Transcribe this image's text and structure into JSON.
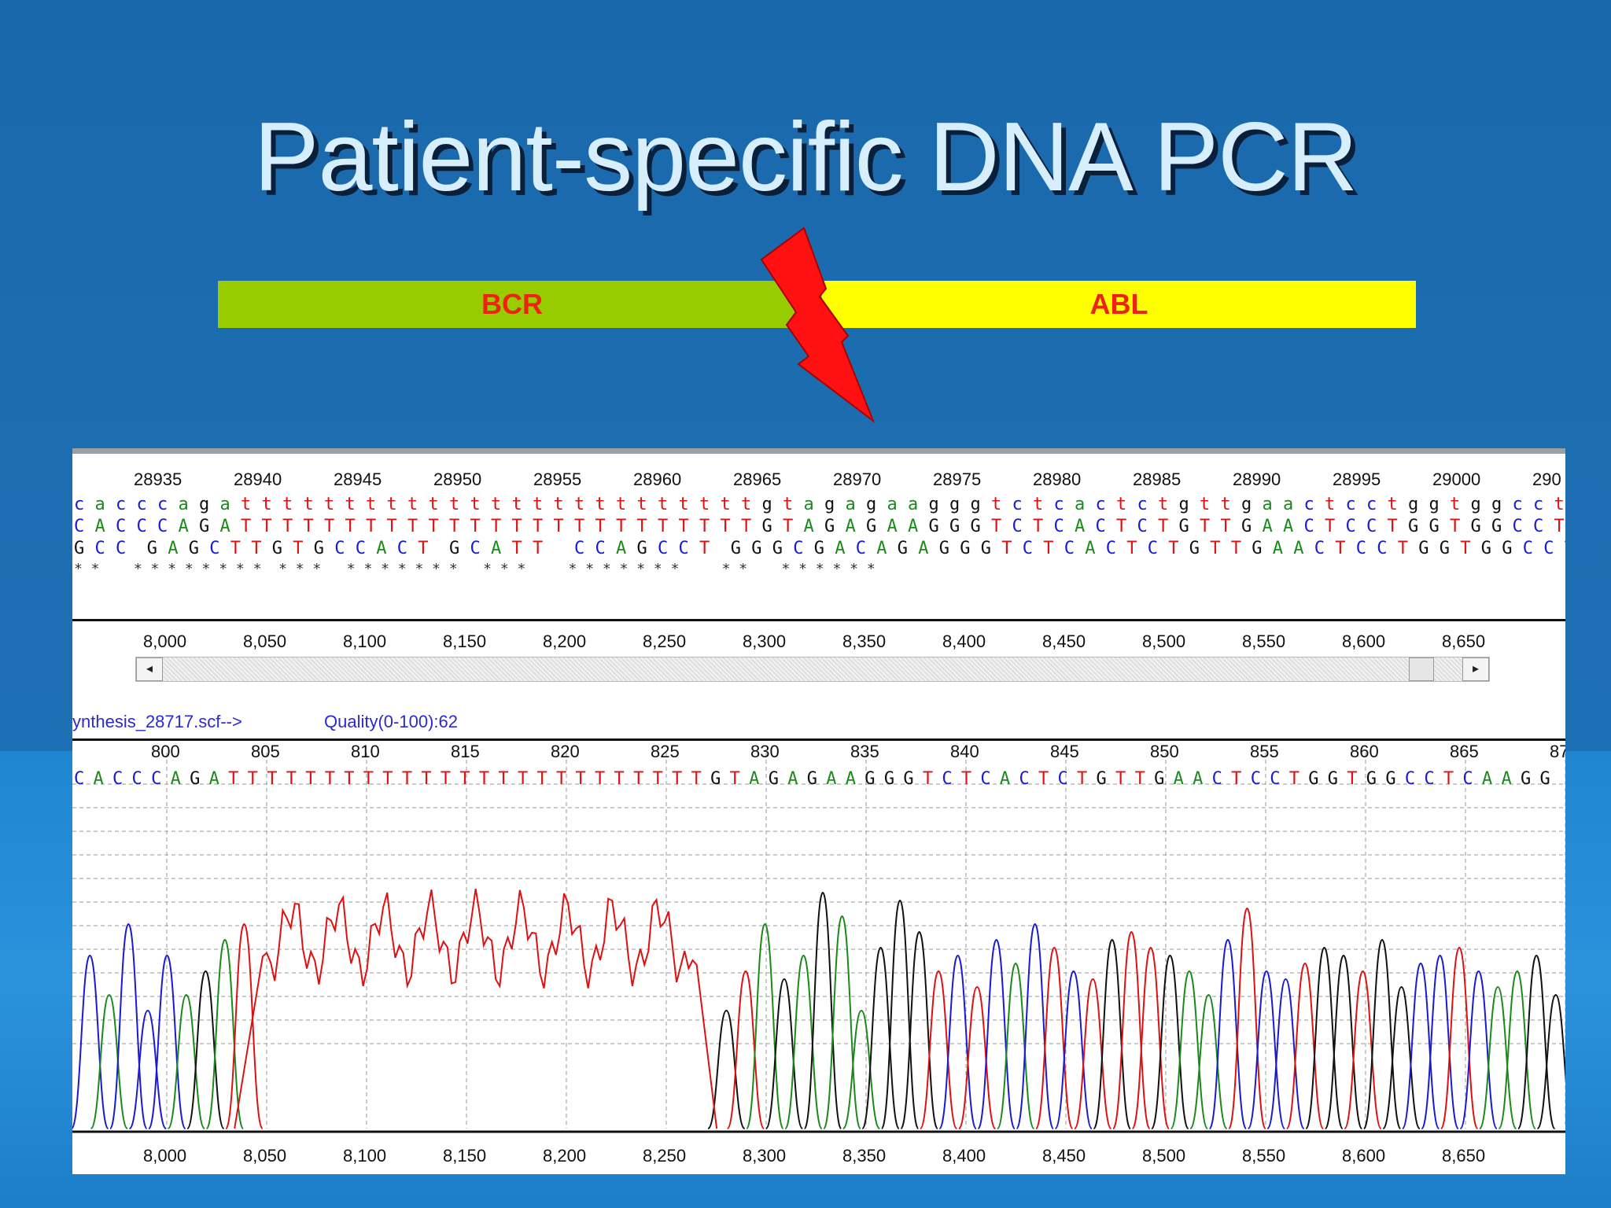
{
  "slide": {
    "title": "Patient-specific DNA PCR"
  },
  "fusion_bar": {
    "left_label": "BCR",
    "right_label": "ABL",
    "left_color": "#99cc00",
    "right_color": "#ffff00",
    "label_color": "#ee2211",
    "breakpoint_icon": "lightning-bolt-icon"
  },
  "alignment": {
    "positions": [
      "28935",
      "28940",
      "28945",
      "28950",
      "28955",
      "28960",
      "28965",
      "28970",
      "28975",
      "28980",
      "28985",
      "28990",
      "28995",
      "29000",
      "290"
    ],
    "reference_sequence": "c a c c c a g a t t t t t t t t t t t t t t t t t t t t t t t t t g t a g a g a a g g g t c t c a c t c t g t t g a a c t c c t g g t g g c c t c a a g g",
    "read_sequence": "C A C C C A G A T T T T T T T T T T T T T T T T T T T T T T T T T G T A G A G A A G G G T C T C A C T C T G T T G A A C T C C T G G T G G C C T C A A G G",
    "consensus_sequence": "G C C  G A G C T T G T G C C A C T  G C A T T   C C A G C C T  G G G C G A C A G A G G G T C T C A C T C T G T T G A A C T C C T G G T G G C C T C A A G G",
    "match_marks": "* *    * * * * * * * *  * * *   * * * * * * *   * * *     * * * * * * *     * *    * * * * * *",
    "axis_ticks": [
      "8,000",
      "8,050",
      "8,100",
      "8,150",
      "8,200",
      "8,250",
      "8,300",
      "8,350",
      "8,400",
      "8,450",
      "8,500",
      "8,550",
      "8,600",
      "8,650"
    ]
  },
  "scrollbar": {
    "left_arrow": "◂",
    "right_arrow": "▸"
  },
  "chromatogram": {
    "file_label": "ynthesis_28717.scf-->",
    "quality_label": "Quality(0-100):62",
    "base_positions": [
      "800",
      "805",
      "810",
      "815",
      "820",
      "825",
      "830",
      "835",
      "840",
      "845",
      "850",
      "855",
      "860",
      "865",
      "87"
    ],
    "base_calls": "CACCCAGATTTTTTTTTTTTTTTTTTTTTTTTTGTAGAGAAGGGTCTCACTCTGTTGAACTCCTGGTGGCCTCAAGG",
    "axis_ticks": [
      "8,000",
      "8,050",
      "8,100",
      "8,150",
      "8,200",
      "8,250",
      "8,300",
      "8,350",
      "8,400",
      "8,450",
      "8,500",
      "8,550",
      "8,600",
      "8,650"
    ],
    "colors": {
      "A": "#1a8a1a",
      "C": "#1a1ad0",
      "G": "#111111",
      "T": "#dd1111"
    }
  }
}
